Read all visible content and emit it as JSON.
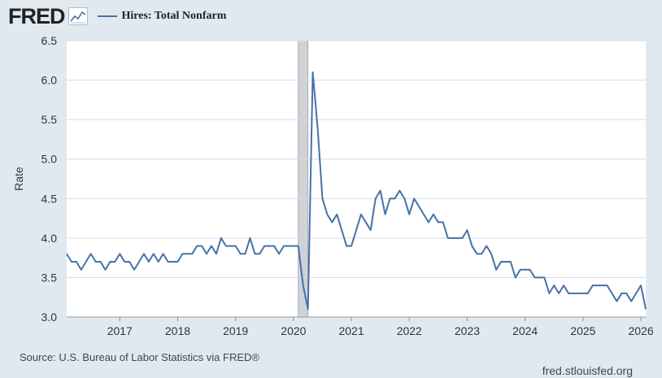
{
  "header": {
    "logo_text": "FRED",
    "logo_icon": "chart-line-icon"
  },
  "footer": {
    "source": "Source: U.S. Bureau of Labor Statistics via FRED®",
    "site": "fred.stlouisfed.org"
  },
  "colors": {
    "background": "#e1e9f0",
    "plot_background": "#ffffff",
    "series": "#4572a7",
    "grid": "#d5dce3",
    "recession": "#cfd3d8"
  },
  "chart_data": {
    "type": "line",
    "title": "",
    "xlabel": "",
    "ylabel": "Rate",
    "xlim": [
      "2016-02",
      "2026-02"
    ],
    "ylim": [
      3.0,
      6.5
    ],
    "x_ticks": [
      "2017",
      "2018",
      "2019",
      "2020",
      "2021",
      "2022",
      "2023",
      "2024",
      "2025",
      "2026"
    ],
    "y_ticks": [
      "3.0",
      "3.5",
      "4.0",
      "4.5",
      "5.0",
      "5.5",
      "6.0",
      "6.5"
    ],
    "grid": "horizontal",
    "legend_position": "top-left",
    "recessions": [
      {
        "start": "2020-02",
        "end": "2020-04"
      }
    ],
    "series": [
      {
        "name": "Hires: Total Nonfarm",
        "color": "#4572a7",
        "x": [
          "2016-02",
          "2016-03",
          "2016-04",
          "2016-05",
          "2016-06",
          "2016-07",
          "2016-08",
          "2016-09",
          "2016-10",
          "2016-11",
          "2016-12",
          "2017-01",
          "2017-02",
          "2017-03",
          "2017-04",
          "2017-05",
          "2017-06",
          "2017-07",
          "2017-08",
          "2017-09",
          "2017-10",
          "2017-11",
          "2017-12",
          "2018-01",
          "2018-02",
          "2018-03",
          "2018-04",
          "2018-05",
          "2018-06",
          "2018-07",
          "2018-08",
          "2018-09",
          "2018-10",
          "2018-11",
          "2018-12",
          "2019-01",
          "2019-02",
          "2019-03",
          "2019-04",
          "2019-05",
          "2019-06",
          "2019-07",
          "2019-08",
          "2019-09",
          "2019-10",
          "2019-11",
          "2019-12",
          "2020-01",
          "2020-02",
          "2020-03",
          "2020-04",
          "2020-05",
          "2020-06",
          "2020-07",
          "2020-08",
          "2020-09",
          "2020-10",
          "2020-11",
          "2020-12",
          "2021-01",
          "2021-02",
          "2021-03",
          "2021-04",
          "2021-05",
          "2021-06",
          "2021-07",
          "2021-08",
          "2021-09",
          "2021-10",
          "2021-11",
          "2021-12",
          "2022-01",
          "2022-02",
          "2022-03",
          "2022-04",
          "2022-05",
          "2022-06",
          "2022-07",
          "2022-08",
          "2022-09",
          "2022-10",
          "2022-11",
          "2022-12",
          "2023-01",
          "2023-02",
          "2023-03",
          "2023-04",
          "2023-05",
          "2023-06",
          "2023-07",
          "2023-08",
          "2023-09",
          "2023-10",
          "2023-11",
          "2023-12",
          "2024-01",
          "2024-02",
          "2024-03",
          "2024-04",
          "2024-05",
          "2024-06",
          "2024-07",
          "2024-08",
          "2024-09",
          "2024-10",
          "2024-11",
          "2024-12",
          "2025-01",
          "2025-02",
          "2025-03",
          "2025-04",
          "2025-05",
          "2025-06",
          "2025-07",
          "2025-08",
          "2025-09",
          "2025-10",
          "2025-11",
          "2025-12",
          "2026-01",
          "2026-02"
        ],
        "values": [
          3.8,
          3.7,
          3.7,
          3.6,
          3.7,
          3.8,
          3.7,
          3.7,
          3.6,
          3.7,
          3.7,
          3.8,
          3.7,
          3.7,
          3.6,
          3.7,
          3.8,
          3.7,
          3.8,
          3.7,
          3.8,
          3.7,
          3.7,
          3.7,
          3.8,
          3.8,
          3.8,
          3.9,
          3.9,
          3.8,
          3.9,
          3.8,
          4.0,
          3.9,
          3.9,
          3.9,
          3.8,
          3.8,
          4.0,
          3.8,
          3.8,
          3.9,
          3.9,
          3.9,
          3.8,
          3.9,
          3.9,
          3.9,
          3.9,
          3.4,
          3.1,
          6.1,
          5.4,
          4.5,
          4.3,
          4.2,
          4.3,
          4.1,
          3.9,
          3.9,
          4.1,
          4.3,
          4.2,
          4.1,
          4.5,
          4.6,
          4.3,
          4.5,
          4.5,
          4.6,
          4.5,
          4.3,
          4.5,
          4.4,
          4.3,
          4.2,
          4.3,
          4.2,
          4.2,
          4.0,
          4.0,
          4.0,
          4.0,
          4.1,
          3.9,
          3.8,
          3.8,
          3.9,
          3.8,
          3.6,
          3.7,
          3.7,
          3.7,
          3.5,
          3.6,
          3.6,
          3.6,
          3.5,
          3.5,
          3.5,
          3.3,
          3.4,
          3.3,
          3.4,
          3.3,
          3.3,
          3.3,
          3.3,
          3.3,
          3.4,
          3.4,
          3.4,
          3.4,
          3.3,
          3.2,
          3.3,
          3.3,
          3.2,
          3.3,
          3.4,
          3.1
        ]
      }
    ]
  }
}
